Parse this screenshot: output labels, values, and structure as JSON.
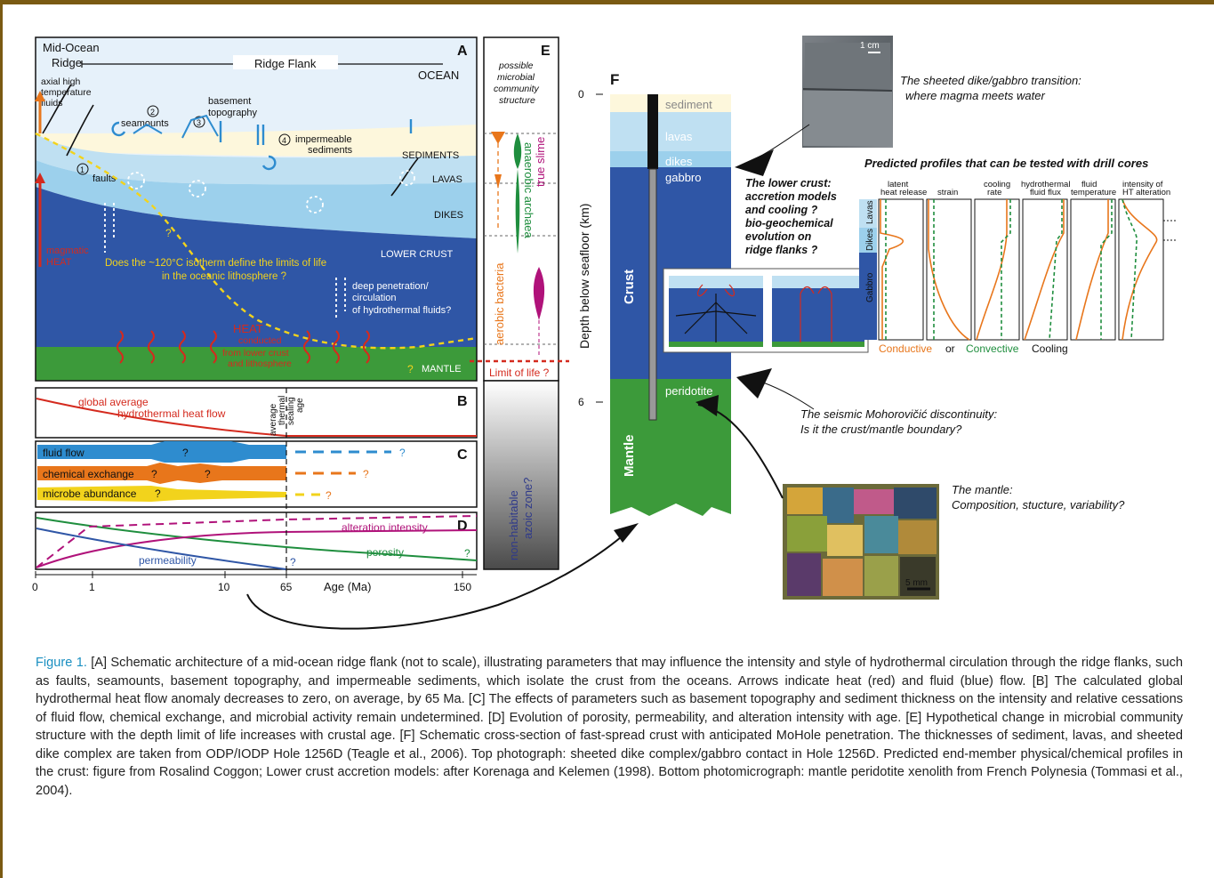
{
  "colors": {
    "deep_blue": "#2f56a6",
    "light_blue": "#bfe0f2",
    "mid_blue": "#9cd0ec",
    "sediment": "#fdf7dc",
    "mantle": "#3c9a3a",
    "heat_red": "#d42a1e",
    "fluid_blue": "#2e8ccf",
    "orange": "#e8761b",
    "yellow": "#f2d31c",
    "magenta": "#b0127a",
    "green": "#1f8e3e",
    "caption_label": "#1a8fc1"
  },
  "panel_a": {
    "label": "A",
    "mor_line1": "Mid-Ocean",
    "mor_line2": "Ridge",
    "ridge_flank": "Ridge Flank",
    "ocean": "OCEAN",
    "axial1": "axial high",
    "axial2": "temperature",
    "axial3": "fluids",
    "seamounts": "seamounts",
    "basement1": "basement",
    "basement2": "topography",
    "impermeable1": "impermeable",
    "impermeable2": "sediments",
    "n1": "1",
    "n2": "2",
    "n3": "3",
    "n4": "4",
    "faults": "faults",
    "sediments": "SEDIMENTS",
    "lavas": "LAVAS",
    "dikes": "DIKES",
    "lower_crust": "LOWER CRUST",
    "mantle": "MANTLE",
    "magmatic1": "magmatic",
    "magmatic2": "HEAT",
    "isotherm1": "Does the ~120°C isotherm define the limits of life",
    "isotherm2": "in the oceanic lithosphere ?",
    "deep1": "deep penetration/",
    "deep2": "circulation",
    "deep3": "of hydrothermal fluids?",
    "heat": "HEAT",
    "conducted1": "conducted",
    "conducted2": "from lower crust",
    "conducted3": "and lithosphere",
    "q": "?"
  },
  "panel_b": {
    "label": "B",
    "line1": "global average",
    "line2": "hydrothermal heat flow",
    "avg1": "average",
    "avg2": "thermal",
    "avg3": "sealing",
    "avg4": "age"
  },
  "panel_c": {
    "label": "C",
    "fluid": "fluid flow",
    "chemical": "chemical exchange",
    "microbe": "microbe abundance",
    "q": "?"
  },
  "panel_d": {
    "label": "D",
    "alteration": "alteration intensity",
    "porosity": "porosity",
    "permeability": "permeability",
    "q": "?"
  },
  "age_axis": {
    "ticks": [
      "0",
      "1",
      "10",
      "65",
      "150"
    ],
    "title": "Age (Ma)"
  },
  "panel_e": {
    "label": "E",
    "t1": "possible",
    "t2": "microbial",
    "t3": "community",
    "t4": "structure",
    "aerobic": "aerobic bacteria",
    "anaerobic": "anaerobic archaea",
    "true_slime": "true slime",
    "limit": "Limit of life ?",
    "azoic1": "non-habitable",
    "azoic2": "azoic zone?"
  },
  "panel_f": {
    "label": "F",
    "axis_title": "Depth below seafloor (km)",
    "ticks": [
      "0",
      "6"
    ],
    "sediment": "sediment",
    "lavas": "lavas",
    "dikes": "dikes",
    "gabbro": "gabbro",
    "peridotite": "peridotite",
    "crust": "Crust",
    "mantle": "Mantle"
  },
  "photo_top": {
    "scale": "1 cm",
    "line1": "The sheeted dike/gabbro transition:",
    "line2": "where magma meets water"
  },
  "lower_crust_text": {
    "l1": "The lower crust:",
    "l2": "accretion models",
    "l3": "and cooling ?",
    "l4": "bio-geochemical",
    "l5": "evolution on",
    "l6": "ridge flanks ?"
  },
  "profiles": {
    "title": "Predicted profiles that can be tested with drill cores",
    "layers": [
      "Lavas",
      "Dikes",
      "Gabbro"
    ],
    "cols": [
      "latent heat release",
      "strain",
      "cooling rate",
      "hydrothermal fluid flux",
      "fluid temperature",
      "intensity of HT alteration"
    ],
    "legend_a": "Conductive",
    "legend_or": "or",
    "legend_b": "Convective",
    "legend_c": "Cooling"
  },
  "moho_text": {
    "l1": "The seismic Mohorovičić discontinuity:",
    "l2": "Is it the crust/mantle boundary?"
  },
  "mantle_text": {
    "l1": "The mantle:",
    "l2": "Composition, stucture, variability?",
    "scale": "5 mm"
  },
  "caption": {
    "label": "Figure 1.",
    "text": " [A] Schematic architecture of a mid-ocean ridge flank (not to scale), illustrating parameters that may influence the intensity and style of hydrothermal circulation through the ridge flanks, such as faults, seamounts, basement topography, and impermeable sediments, which isolate the crust from the oceans. Arrows indicate heat (red) and fluid (blue) flow. [B] The calculated global hydrothermal heat flow anomaly decreases to zero, on average, by 65 Ma. [C] The effects of parameters such as basement topography and sediment thickness on the intensity and relative cessations of fluid flow, chemical exchange, and microbial activity remain undetermined. [D] Evolution of porosity, permeability, and alteration intensity with age. [E] Hypothetical change in microbial community structure with the depth limit of life increases with crustal age. [F] Schematic cross-section of fast-spread crust with anticipated MoHole penetration. The thicknesses of sediment, lavas, and sheeted dike complex are taken from ODP/IODP Hole 1256D (Teagle et al., 2006). Top photograph: sheeted dike complex/gabbro contact in Hole 1256D. Predicted end-member physical/chemical profiles in the crust: figure from Rosalind Coggon; Lower crust accretion models: after Korenaga and Kelemen (1998). Bottom photomicrograph: mantle peridotite xenolith from French Polynesia (Tommasi et al., 2004)."
  }
}
